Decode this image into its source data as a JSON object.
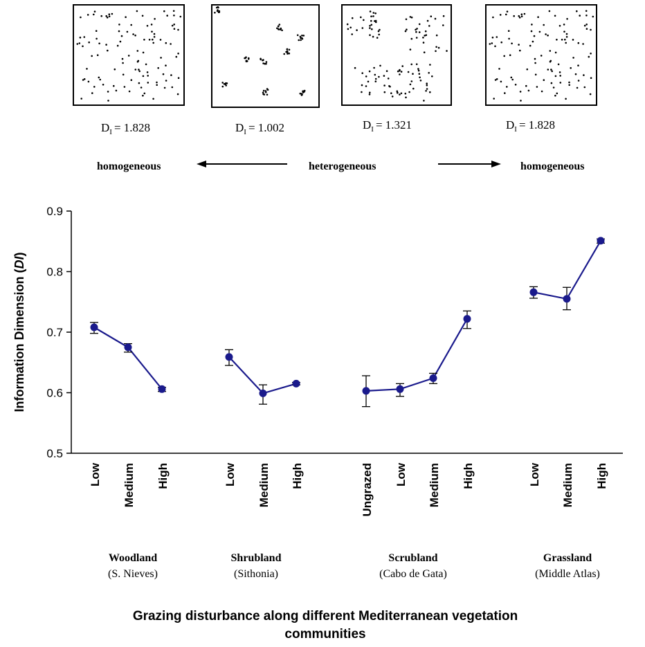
{
  "patterns": [
    {
      "label_prefix": "D",
      "label_sub": "I",
      "value_text": "= 1.828",
      "type": "random"
    },
    {
      "label_prefix": "D",
      "label_sub": "I",
      "value_text": "= 1.002",
      "type": "clusters"
    },
    {
      "label_prefix": "D",
      "label_sub": "I",
      "value_text": "= 1.321",
      "type": "bands"
    },
    {
      "label_prefix": "D",
      "label_sub": "I",
      "value_text": "= 1.828",
      "type": "random"
    }
  ],
  "scale_labels": {
    "left": "homogeneous",
    "middle": "heterogeneous",
    "right": "homogeneous"
  },
  "colors": {
    "series": "#1a1a8c",
    "axis": "#000000"
  },
  "chart_data": {
    "type": "line",
    "ylabel_main": "Information Dimension (",
    "ylabel_italic": "DI",
    "ylabel_end": ")",
    "xlabel_line1": "Grazing disturbance along different Mediterranean vegetation",
    "xlabel_line2": "communities",
    "ylim": [
      0.5,
      0.9
    ],
    "yticks": [
      "0.5",
      "0.6",
      "0.7",
      "0.8",
      "0.9"
    ],
    "grid": false,
    "groups": [
      {
        "name": "Woodland",
        "location": "(S. Nieves)",
        "categories": [
          "Low",
          "Medium",
          "High"
        ],
        "values": [
          0.708,
          0.675,
          0.606
        ],
        "err_low": [
          0.01,
          0.008,
          0.004
        ],
        "err_high": [
          0.008,
          0.006,
          0.003
        ]
      },
      {
        "name": "Shrubland",
        "location": "(Sithonia)",
        "categories": [
          "Low",
          "Medium",
          "High"
        ],
        "values": [
          0.659,
          0.599,
          0.615
        ],
        "err_low": [
          0.014,
          0.018,
          0.002
        ],
        "err_high": [
          0.012,
          0.014,
          0.002
        ]
      },
      {
        "name": "Scrubland",
        "location": "(Cabo de Gata)",
        "categories": [
          "Ungrazed",
          "Low",
          "Medium",
          "High"
        ],
        "values": [
          0.603,
          0.606,
          0.624,
          0.722
        ],
        "err_low": [
          0.026,
          0.012,
          0.009,
          0.016
        ],
        "err_high": [
          0.025,
          0.009,
          0.008,
          0.013
        ]
      },
      {
        "name": "Grassland",
        "location": "(Middle Atlas)",
        "categories": [
          "Low",
          "Medium",
          "High"
        ],
        "values": [
          0.766,
          0.755,
          0.851
        ],
        "err_low": [
          0.01,
          0.018,
          0.004
        ],
        "err_high": [
          0.009,
          0.019,
          0.003
        ]
      }
    ]
  }
}
